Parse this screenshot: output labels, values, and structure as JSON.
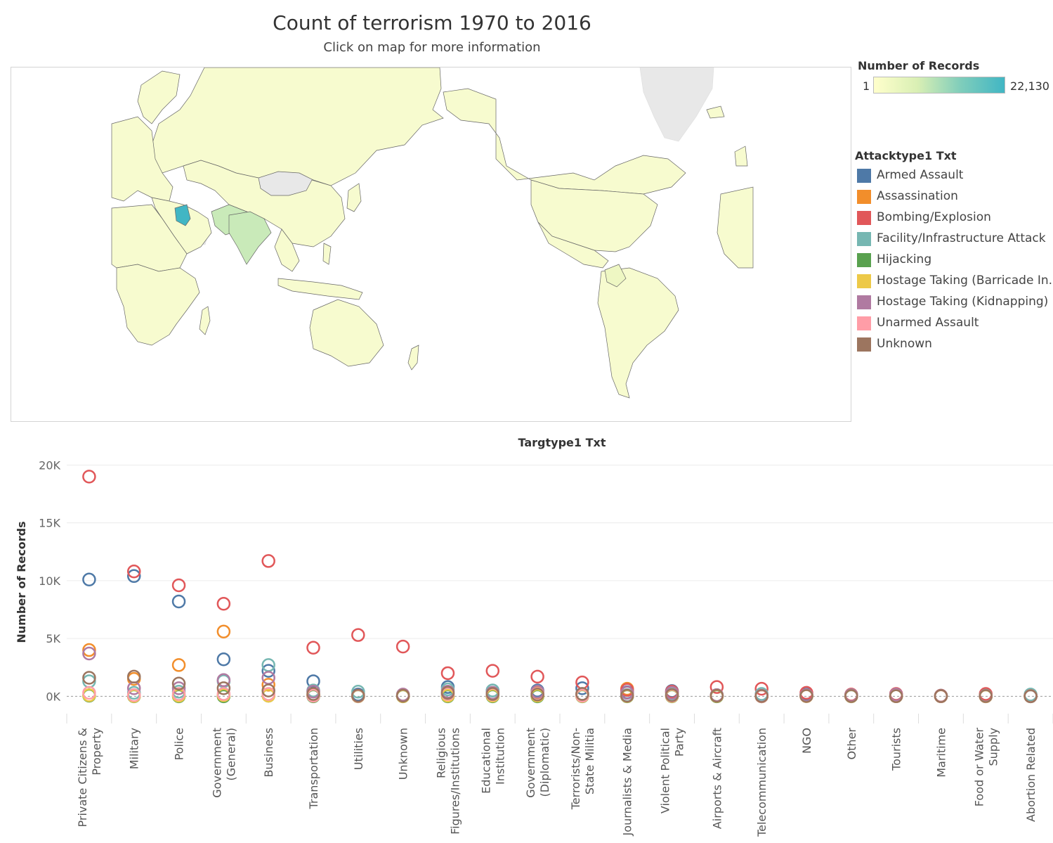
{
  "title": "Count of terrorism 1970 to  2016",
  "subtitle": "Click on map for more information",
  "color_legend": {
    "title": "Number of Records",
    "min_label": "1",
    "max_label": "22,130",
    "min": 1,
    "max": 22130,
    "colors": [
      "#ffffcc",
      "#d9efb4",
      "#7fcdbb",
      "#41b6c4"
    ]
  },
  "attack_legend": {
    "title": "Attacktype1 Txt",
    "items": [
      {
        "label": "Armed Assault",
        "color": "#4e79a7"
      },
      {
        "label": "Assassination",
        "color": "#f28e2b"
      },
      {
        "label": "Bombing/Explosion",
        "color": "#e15759"
      },
      {
        "label": "Facility/Infrastructure Attack",
        "color": "#76b7b2"
      },
      {
        "label": "Hijacking",
        "color": "#59a14f"
      },
      {
        "label": "Hostage Taking (Barricade In..",
        "color": "#edc948"
      },
      {
        "label": "Hostage Taking (Kidnapping)",
        "color": "#b07aa1"
      },
      {
        "label": "Unarmed Assault",
        "color": "#ff9da7"
      },
      {
        "label": "Unknown",
        "color": "#9c755f"
      }
    ]
  },
  "map_colors": {
    "base": "#f7fbcf",
    "light": "#eef7c3",
    "medium": "#c9eab9",
    "high": "#41b6c4",
    "nodata": "#e8e8e8",
    "border": "#666666"
  },
  "chart_data": {
    "type": "scatter",
    "title": "Targtype1 Txt",
    "xlabel": "Targtype1 Txt",
    "ylabel": "Number of Records",
    "ylim": [
      -1500,
      21000
    ],
    "ytick_values": [
      0,
      5000,
      10000,
      15000,
      20000
    ],
    "ytick_labels": [
      "0K",
      "5K",
      "10K",
      "15K",
      "20K"
    ],
    "categories": [
      "Private Citizens & Property",
      "Military",
      "Police",
      "Government (General)",
      "Business",
      "Transportation",
      "Utilities",
      "Unknown",
      "Religious Figures/Institutions",
      "Educational Institution",
      "Government (Diplomatic)",
      "Terrorists/Non-State Militia",
      "Journalists & Media",
      "Violent Political Party",
      "Airports & Aircraft",
      "Telecommunication",
      "NGO",
      "Other",
      "Tourists",
      "Maritime",
      "Food or Water Supply",
      "Abortion Related"
    ],
    "category_lines": [
      [
        "Private Citizens &",
        "Property"
      ],
      [
        "Military"
      ],
      [
        "Police"
      ],
      [
        "Government",
        "(General)"
      ],
      [
        "Business"
      ],
      [
        "Transportation"
      ],
      [
        "Utilities"
      ],
      [
        "Unknown"
      ],
      [
        "Religious",
        "Figures/Institutions"
      ],
      [
        "Educational",
        "Institution"
      ],
      [
        "Government",
        "(Diplomatic)"
      ],
      [
        "Terrorists/Non-",
        "State Militia"
      ],
      [
        "Journalists & Media"
      ],
      [
        "Violent Political",
        "Party"
      ],
      [
        "Airports & Aircraft"
      ],
      [
        "Telecommunication"
      ],
      [
        "NGO"
      ],
      [
        "Other"
      ],
      [
        "Tourists"
      ],
      [
        "Maritime"
      ],
      [
        "Food or Water",
        "Supply"
      ],
      [
        "Abortion Related"
      ]
    ],
    "series": [
      {
        "name": "Armed Assault",
        "values": [
          10100,
          10400,
          8200,
          3200,
          2200,
          1300,
          150,
          100,
          800,
          500,
          500,
          700,
          350,
          450,
          100,
          0,
          150,
          100,
          100,
          50,
          60,
          20
        ]
      },
      {
        "name": "Assassination",
        "values": [
          4000,
          1500,
          2700,
          5600,
          1000,
          100,
          20,
          10,
          200,
          150,
          300,
          100,
          650,
          300,
          10,
          10,
          80,
          20,
          10,
          5,
          5,
          10
        ]
      },
      {
        "name": "Bombing/Explosion",
        "values": [
          19000,
          10800,
          9600,
          8000,
          11700,
          4200,
          5300,
          4300,
          2000,
          2200,
          1700,
          1200,
          550,
          400,
          800,
          650,
          300,
          150,
          200,
          50,
          200,
          80
        ]
      },
      {
        "name": "Facility/Infrastructure Attack",
        "values": [
          1300,
          300,
          400,
          1300,
          2700,
          500,
          400,
          50,
          600,
          500,
          200,
          200,
          100,
          150,
          50,
          200,
          50,
          100,
          20,
          20,
          50,
          150
        ]
      },
      {
        "name": "Hijacking",
        "values": [
          50,
          0,
          0,
          0,
          50,
          0,
          0,
          0,
          0,
          0,
          0,
          0,
          0,
          0,
          0,
          0,
          20,
          0,
          10,
          10,
          0,
          0
        ]
      },
      {
        "name": "Hostage Taking (Barricade In..",
        "values": [
          100,
          20,
          50,
          100,
          50,
          50,
          10,
          10,
          50,
          50,
          60,
          20,
          20,
          20,
          30,
          0,
          10,
          10,
          10,
          5,
          0,
          0
        ]
      },
      {
        "name": "Hostage Taking (Kidnapping)",
        "values": [
          3700,
          700,
          700,
          1400,
          1600,
          400,
          50,
          150,
          400,
          300,
          400,
          200,
          300,
          300,
          100,
          50,
          100,
          100,
          150,
          20,
          20,
          0
        ]
      },
      {
        "name": "Unarmed Assault",
        "values": [
          300,
          100,
          200,
          200,
          200,
          50,
          20,
          50,
          200,
          150,
          200,
          50,
          50,
          50,
          50,
          0,
          30,
          20,
          20,
          5,
          20,
          20
        ]
      },
      {
        "name": "Unknown",
        "values": [
          1600,
          1700,
          1100,
          700,
          500,
          200,
          50,
          50,
          300,
          200,
          150,
          200,
          50,
          100,
          50,
          20,
          30,
          20,
          10,
          10,
          20,
          10
        ]
      }
    ]
  }
}
